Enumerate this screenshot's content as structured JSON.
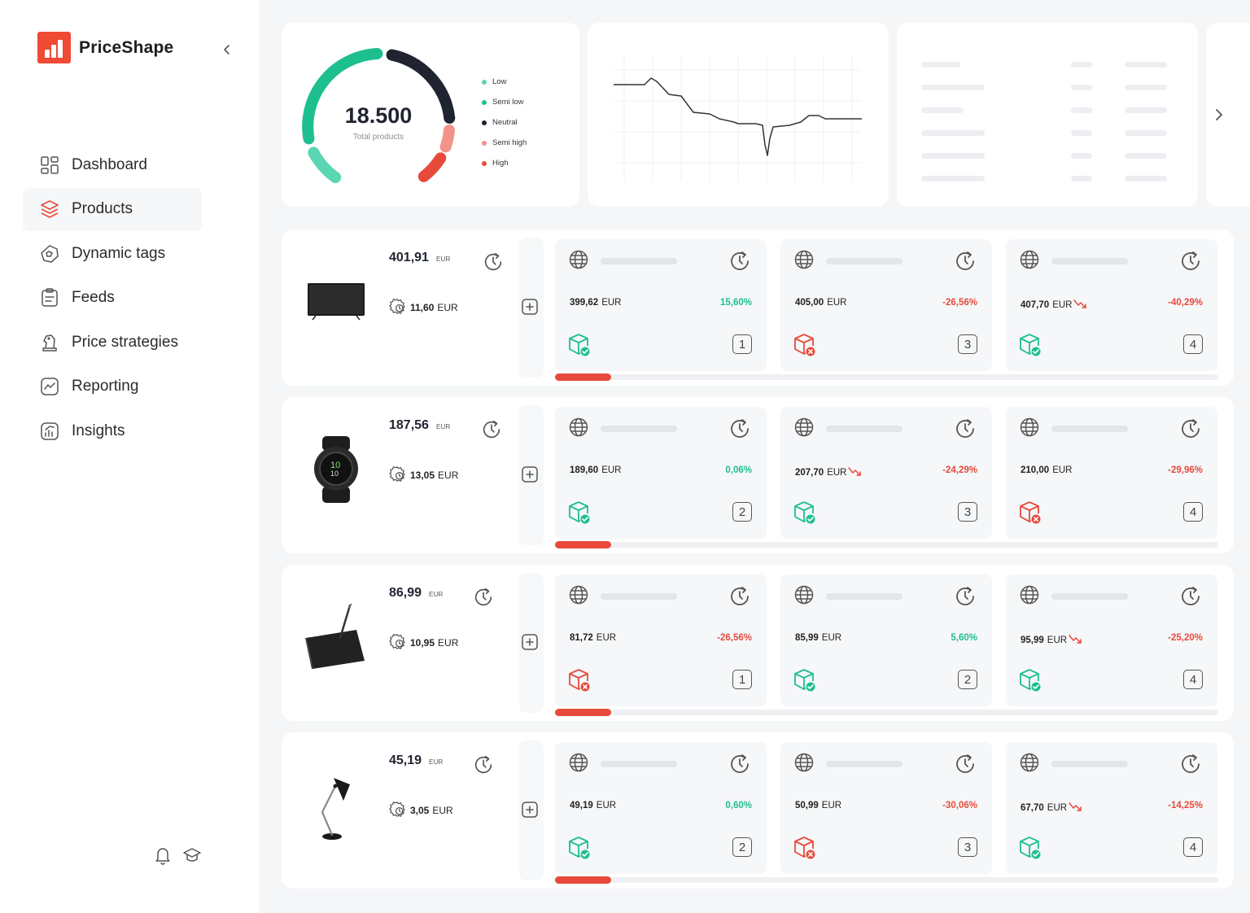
{
  "app": {
    "name": "PriceShape"
  },
  "sidebar": {
    "items": [
      {
        "label": "Dashboard",
        "icon": "dashboard-icon",
        "active": false
      },
      {
        "label": "Products",
        "icon": "layers-icon",
        "active": true
      },
      {
        "label": "Dynamic tags",
        "icon": "tag-icon",
        "active": false
      },
      {
        "label": "Feeds",
        "icon": "feed-icon",
        "active": false
      },
      {
        "label": "Price strategies",
        "icon": "chess-knight-icon",
        "active": false
      },
      {
        "label": "Reporting",
        "icon": "reporting-icon",
        "active": false
      },
      {
        "label": "Insights",
        "icon": "insights-icon",
        "active": false
      }
    ]
  },
  "summary": {
    "total_products": "18.500",
    "total_label": "Total products",
    "legend": [
      {
        "label": "Low",
        "color": "#5bd6b2"
      },
      {
        "label": "Semi low",
        "color": "#1dbf8e"
      },
      {
        "label": "Neutral",
        "color": "#1f2430"
      },
      {
        "label": "Semi high",
        "color": "#f2938a"
      },
      {
        "label": "High",
        "color": "#e74a3b"
      }
    ]
  },
  "colors": {
    "accent": "#ef4a33",
    "positive": "#1dbf8e",
    "negative": "#e74a3b",
    "neutral": "#1f2430"
  },
  "products": [
    {
      "image": "tv-icon",
      "price": "401,91",
      "currency": "EUR",
      "cost": "11,60",
      "cost_currency": "EUR",
      "progress": 0.085,
      "competitors": [
        {
          "price": "399,62",
          "currency": "EUR",
          "trend_down": false,
          "change": "15,60%",
          "change_sign": "positive",
          "stock": "in-stock",
          "rank": "1"
        },
        {
          "price": "405,00",
          "currency": "EUR",
          "trend_down": false,
          "change": "-26,56%",
          "change_sign": "negative",
          "stock": "out-of-stock",
          "rank": "3"
        },
        {
          "price": "407,70",
          "currency": "EUR",
          "trend_down": true,
          "change": "-40,29%",
          "change_sign": "negative",
          "stock": "in-stock",
          "rank": "4"
        }
      ]
    },
    {
      "image": "smartwatch-icon",
      "price": "187,56",
      "currency": "EUR",
      "cost": "13,05",
      "cost_currency": "EUR",
      "progress": 0.085,
      "competitors": [
        {
          "price": "189,60",
          "currency": "EUR",
          "trend_down": false,
          "change": "0,06%",
          "change_sign": "positive",
          "stock": "in-stock",
          "rank": "2"
        },
        {
          "price": "207,70",
          "currency": "EUR",
          "trend_down": true,
          "change": "-24,29%",
          "change_sign": "negative",
          "stock": "in-stock",
          "rank": "3"
        },
        {
          "price": "210,00",
          "currency": "EUR",
          "trend_down": false,
          "change": "-29,96%",
          "change_sign": "negative",
          "stock": "out-of-stock",
          "rank": "4"
        }
      ]
    },
    {
      "image": "drawing-tablet-icon",
      "price": "86,99",
      "currency": "EUR",
      "cost": "10,95",
      "cost_currency": "EUR",
      "progress": 0.085,
      "competitors": [
        {
          "price": "81,72",
          "currency": "EUR",
          "trend_down": false,
          "change": "-26,56%",
          "change_sign": "negative",
          "stock": "out-of-stock",
          "rank": "1"
        },
        {
          "price": "85,99",
          "currency": "EUR",
          "trend_down": false,
          "change": "5,60%",
          "change_sign": "positive",
          "stock": "in-stock",
          "rank": "2"
        },
        {
          "price": "95,99",
          "currency": "EUR",
          "trend_down": true,
          "change": "-25,20%",
          "change_sign": "negative",
          "stock": "in-stock",
          "rank": "4"
        }
      ]
    },
    {
      "image": "desk-lamp-icon",
      "price": "45,19",
      "currency": "EUR",
      "cost": "3,05",
      "cost_currency": "EUR",
      "progress": 0.085,
      "competitors": [
        {
          "price": "49,19",
          "currency": "EUR",
          "trend_down": false,
          "change": "0,60%",
          "change_sign": "positive",
          "stock": "in-stock",
          "rank": "2"
        },
        {
          "price": "50,99",
          "currency": "EUR",
          "trend_down": false,
          "change": "-30,06%",
          "change_sign": "negative",
          "stock": "out-of-stock",
          "rank": "3"
        },
        {
          "price": "67,70",
          "currency": "EUR",
          "trend_down": true,
          "change": "-14,25%",
          "change_sign": "negative",
          "stock": "in-stock",
          "rank": "4"
        }
      ]
    }
  ]
}
